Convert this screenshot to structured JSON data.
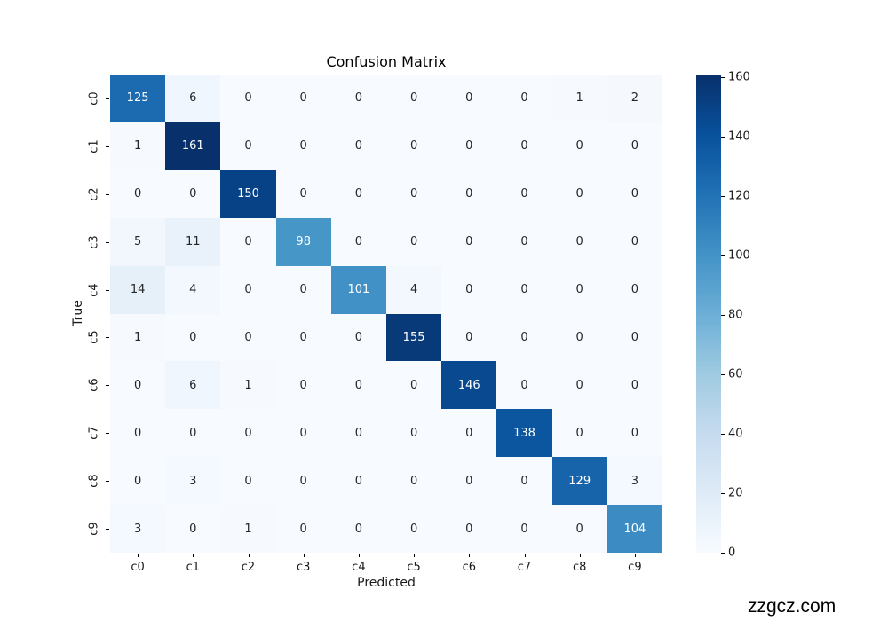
{
  "figure": {
    "watermark": "zzgcz.com"
  },
  "chart_data": {
    "type": "heatmap",
    "title": "Confusion Matrix",
    "xlabel": "Predicted",
    "ylabel": "True",
    "x_categories": [
      "c0",
      "c1",
      "c2",
      "c3",
      "c4",
      "c5",
      "c6",
      "c7",
      "c8",
      "c9"
    ],
    "y_categories": [
      "c0",
      "c1",
      "c2",
      "c3",
      "c4",
      "c5",
      "c6",
      "c7",
      "c8",
      "c9"
    ],
    "values": [
      [
        125,
        6,
        0,
        0,
        0,
        0,
        0,
        0,
        1,
        2
      ],
      [
        1,
        161,
        0,
        0,
        0,
        0,
        0,
        0,
        0,
        0
      ],
      [
        0,
        0,
        150,
        0,
        0,
        0,
        0,
        0,
        0,
        0
      ],
      [
        5,
        11,
        0,
        98,
        0,
        0,
        0,
        0,
        0,
        0
      ],
      [
        14,
        4,
        0,
        0,
        101,
        4,
        0,
        0,
        0,
        0
      ],
      [
        1,
        0,
        0,
        0,
        0,
        155,
        0,
        0,
        0,
        0
      ],
      [
        0,
        6,
        1,
        0,
        0,
        0,
        146,
        0,
        0,
        0
      ],
      [
        0,
        0,
        0,
        0,
        0,
        0,
        0,
        138,
        0,
        0
      ],
      [
        0,
        3,
        0,
        0,
        0,
        0,
        0,
        0,
        129,
        3
      ],
      [
        3,
        0,
        1,
        0,
        0,
        0,
        0,
        0,
        0,
        104
      ]
    ],
    "vmin": 0,
    "vmax": 161,
    "annotated": true,
    "grid": false,
    "colormap": "Blues",
    "colormap_stops": [
      {
        "t": 0.0,
        "c": "#f7fbff"
      },
      {
        "t": 0.125,
        "c": "#deebf7"
      },
      {
        "t": 0.25,
        "c": "#c6dbef"
      },
      {
        "t": 0.375,
        "c": "#9ecae1"
      },
      {
        "t": 0.5,
        "c": "#6baed6"
      },
      {
        "t": 0.625,
        "c": "#4292c6"
      },
      {
        "t": 0.75,
        "c": "#2171b5"
      },
      {
        "t": 0.875,
        "c": "#08519c"
      },
      {
        "t": 1.0,
        "c": "#08306b"
      }
    ],
    "colorbar": {
      "position": "right",
      "ticks": [
        0,
        20,
        40,
        60,
        80,
        100,
        120,
        140,
        160
      ]
    },
    "annotation_colors": {
      "dark": "#262626",
      "light": "#ffffff"
    }
  }
}
